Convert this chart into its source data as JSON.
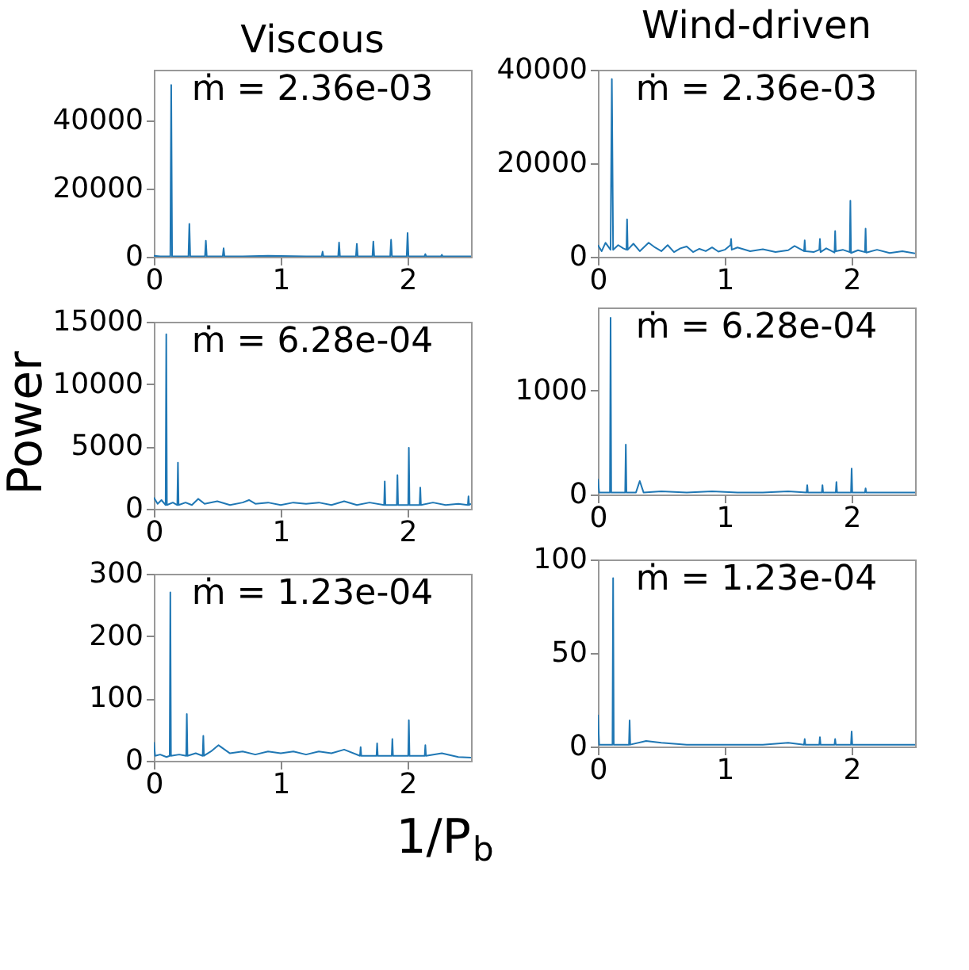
{
  "chart_data": [
    {
      "type": "line",
      "title": "Viscous",
      "annotations": [
        "ṁ = 2.36e-03"
      ],
      "xlim": [
        0,
        2.5
      ],
      "xticks": [
        0,
        1,
        2
      ],
      "ylim": [
        0,
        55000
      ],
      "yticks": [
        0,
        20000,
        40000
      ],
      "x": [
        0,
        0.05,
        0.13,
        0.137,
        0.144,
        0.2,
        0.273,
        0.28,
        0.287,
        0.35,
        0.403,
        0.41,
        0.417,
        0.48,
        0.543,
        0.55,
        0.557,
        0.7,
        0.9,
        1.1,
        1.2,
        1.323,
        1.33,
        1.337,
        1.453,
        1.46,
        1.467,
        1.593,
        1.6,
        1.607,
        1.723,
        1.73,
        1.737,
        1.863,
        1.87,
        1.877,
        1.993,
        2.0,
        2.007,
        2.133,
        2.14,
        2.147,
        2.263,
        2.27,
        2.277,
        2.4,
        2.5
      ],
      "series": [
        {
          "color": "#1f77b4",
          "values": [
            300,
            100,
            100,
            50500,
            100,
            100,
            100,
            9700,
            100,
            100,
            100,
            4700,
            100,
            100,
            100,
            2500,
            100,
            100,
            300,
            200,
            100,
            100,
            1500,
            100,
            100,
            4200,
            100,
            100,
            3800,
            100,
            100,
            4500,
            100,
            100,
            5000,
            100,
            100,
            7000,
            100,
            100,
            800,
            100,
            100,
            600,
            100,
            100,
            100
          ]
        }
      ]
    },
    {
      "type": "line",
      "title": "Wind-driven",
      "annotations": [
        "ṁ = 2.36e-03"
      ],
      "xlim": [
        0,
        2.5
      ],
      "xticks": [
        0,
        1,
        2
      ],
      "ylim": [
        0,
        40000
      ],
      "yticks": [
        0,
        20000,
        40000
      ],
      "x": [
        0,
        0.03,
        0.06,
        0.1,
        0.11,
        0.12,
        0.16,
        0.2,
        0.225,
        0.23,
        0.235,
        0.28,
        0.33,
        0.4,
        0.45,
        0.5,
        0.55,
        0.6,
        0.65,
        0.7,
        0.75,
        0.8,
        0.85,
        0.9,
        0.95,
        1.0,
        1.045,
        1.05,
        1.055,
        1.1,
        1.2,
        1.3,
        1.4,
        1.5,
        1.55,
        1.625,
        1.63,
        1.635,
        1.7,
        1.745,
        1.75,
        1.755,
        1.8,
        1.865,
        1.87,
        1.875,
        1.93,
        1.985,
        1.99,
        1.995,
        2.05,
        2.105,
        2.11,
        2.115,
        2.2,
        2.3,
        2.4,
        2.5
      ],
      "series": [
        {
          "color": "#1f77b4",
          "values": [
            2500,
            1200,
            3000,
            1500,
            38000,
            1500,
            2500,
            1800,
            1500,
            8000,
            1500,
            2800,
            1200,
            3000,
            2000,
            1200,
            2500,
            1000,
            1800,
            2200,
            1000,
            1700,
            1200,
            2000,
            1100,
            1500,
            2500,
            3800,
            1500,
            2000,
            1200,
            1600,
            1000,
            1400,
            2300,
            1200,
            3500,
            1200,
            1000,
            1500,
            3800,
            1000,
            1800,
            900,
            5500,
            1200,
            1500,
            1000,
            12000,
            800,
            1400,
            1000,
            6000,
            900,
            1500,
            800,
            1200,
            700
          ]
        }
      ]
    },
    {
      "type": "line",
      "ylabel": "Power",
      "annotations": [
        "ṁ = 6.28e-04"
      ],
      "xlim": [
        0,
        2.5
      ],
      "xticks": [
        0,
        1,
        2
      ],
      "ylim": [
        0,
        15000
      ],
      "yticks": [
        0,
        5000,
        10000,
        15000
      ],
      "x": [
        0,
        0.03,
        0.06,
        0.093,
        0.098,
        0.103,
        0.15,
        0.185,
        0.19,
        0.195,
        0.25,
        0.3,
        0.35,
        0.4,
        0.5,
        0.6,
        0.7,
        0.75,
        0.8,
        0.9,
        1.0,
        1.1,
        1.2,
        1.3,
        1.4,
        1.5,
        1.6,
        1.7,
        1.815,
        1.82,
        1.825,
        1.915,
        1.92,
        1.925,
        2.005,
        2.01,
        2.015,
        2.095,
        2.1,
        2.105,
        2.2,
        2.3,
        2.4,
        2.475,
        2.48,
        2.485,
        2.5
      ],
      "series": [
        {
          "color": "#1f77b4",
          "values": [
            900,
            400,
            700,
            300,
            14000,
            300,
            500,
            300,
            3700,
            300,
            500,
            300,
            800,
            400,
            600,
            300,
            500,
            700,
            400,
            500,
            300,
            500,
            400,
            500,
            300,
            600,
            300,
            500,
            300,
            2200,
            300,
            300,
            2700,
            300,
            300,
            4900,
            300,
            300,
            1700,
            300,
            500,
            300,
            400,
            300,
            1000,
            300,
            400
          ]
        }
      ]
    },
    {
      "type": "line",
      "annotations": [
        "ṁ = 6.28e-04"
      ],
      "xlim": [
        0,
        2.5
      ],
      "xticks": [
        0,
        1,
        2
      ],
      "ylim": [
        0,
        1800
      ],
      "yticks": [
        0,
        1000
      ],
      "x": [
        0,
        0.01,
        0.05,
        0.095,
        0.1,
        0.105,
        0.15,
        0.215,
        0.22,
        0.225,
        0.3,
        0.33,
        0.36,
        0.5,
        0.7,
        0.9,
        1.1,
        1.3,
        1.5,
        1.645,
        1.65,
        1.655,
        1.765,
        1.77,
        1.775,
        1.875,
        1.88,
        1.885,
        1.995,
        2.0,
        2.005,
        2.105,
        2.11,
        2.115,
        2.3,
        2.5
      ],
      "series": [
        {
          "color": "#1f77b4",
          "values": [
            150,
            20,
            20,
            20,
            1700,
            20,
            20,
            20,
            480,
            20,
            20,
            130,
            20,
            30,
            20,
            30,
            20,
            20,
            30,
            20,
            90,
            20,
            20,
            90,
            20,
            20,
            120,
            20,
            20,
            250,
            20,
            20,
            60,
            20,
            20,
            20
          ]
        }
      ]
    },
    {
      "type": "line",
      "xlabel": "1/P$_{b}$",
      "annotations": [
        "ṁ = 1.23e-04"
      ],
      "xlim": [
        0,
        2.5
      ],
      "xticks": [
        0,
        1,
        2
      ],
      "ylim": [
        0,
        300
      ],
      "yticks": [
        0,
        100,
        200,
        300
      ],
      "x": [
        0,
        0.01,
        0.05,
        0.1,
        0.125,
        0.13,
        0.135,
        0.2,
        0.255,
        0.26,
        0.265,
        0.33,
        0.385,
        0.39,
        0.395,
        0.45,
        0.51,
        0.6,
        0.7,
        0.8,
        0.9,
        1.0,
        1.1,
        1.2,
        1.3,
        1.4,
        1.5,
        1.625,
        1.63,
        1.635,
        1.755,
        1.76,
        1.765,
        1.875,
        1.88,
        1.885,
        2.005,
        2.01,
        2.015,
        2.135,
        2.14,
        2.145,
        2.27,
        2.4,
        2.5
      ],
      "series": [
        {
          "color": "#1f77b4",
          "values": [
            30,
            8,
            10,
            6,
            8,
            270,
            8,
            10,
            8,
            75,
            8,
            12,
            8,
            40,
            8,
            15,
            25,
            12,
            15,
            10,
            15,
            12,
            15,
            10,
            15,
            12,
            18,
            8,
            22,
            8,
            8,
            28,
            8,
            8,
            35,
            8,
            8,
            65,
            8,
            8,
            25,
            8,
            12,
            6,
            5
          ]
        }
      ]
    },
    {
      "type": "line",
      "annotations": [
        "ṁ = 1.23e-04"
      ],
      "xlim": [
        0,
        2.5
      ],
      "xticks": [
        0,
        1,
        2
      ],
      "ylim": [
        0,
        100
      ],
      "yticks": [
        0,
        50,
        100
      ],
      "x": [
        0,
        0.01,
        0.05,
        0.115,
        0.12,
        0.125,
        0.2,
        0.245,
        0.25,
        0.255,
        0.38,
        0.5,
        0.7,
        1.0,
        1.3,
        1.5,
        1.625,
        1.63,
        1.635,
        1.745,
        1.75,
        1.755,
        1.865,
        1.87,
        1.875,
        1.995,
        2.0,
        2.005,
        2.2,
        2.5
      ],
      "series": [
        {
          "color": "#1f77b4",
          "values": [
            17,
            1,
            1,
            1,
            90,
            1,
            1,
            1,
            14,
            1,
            3,
            2,
            1,
            1,
            1,
            2,
            1,
            4,
            1,
            1,
            5,
            1,
            1,
            4,
            1,
            1,
            8,
            1,
            1,
            1
          ]
        }
      ]
    }
  ]
}
